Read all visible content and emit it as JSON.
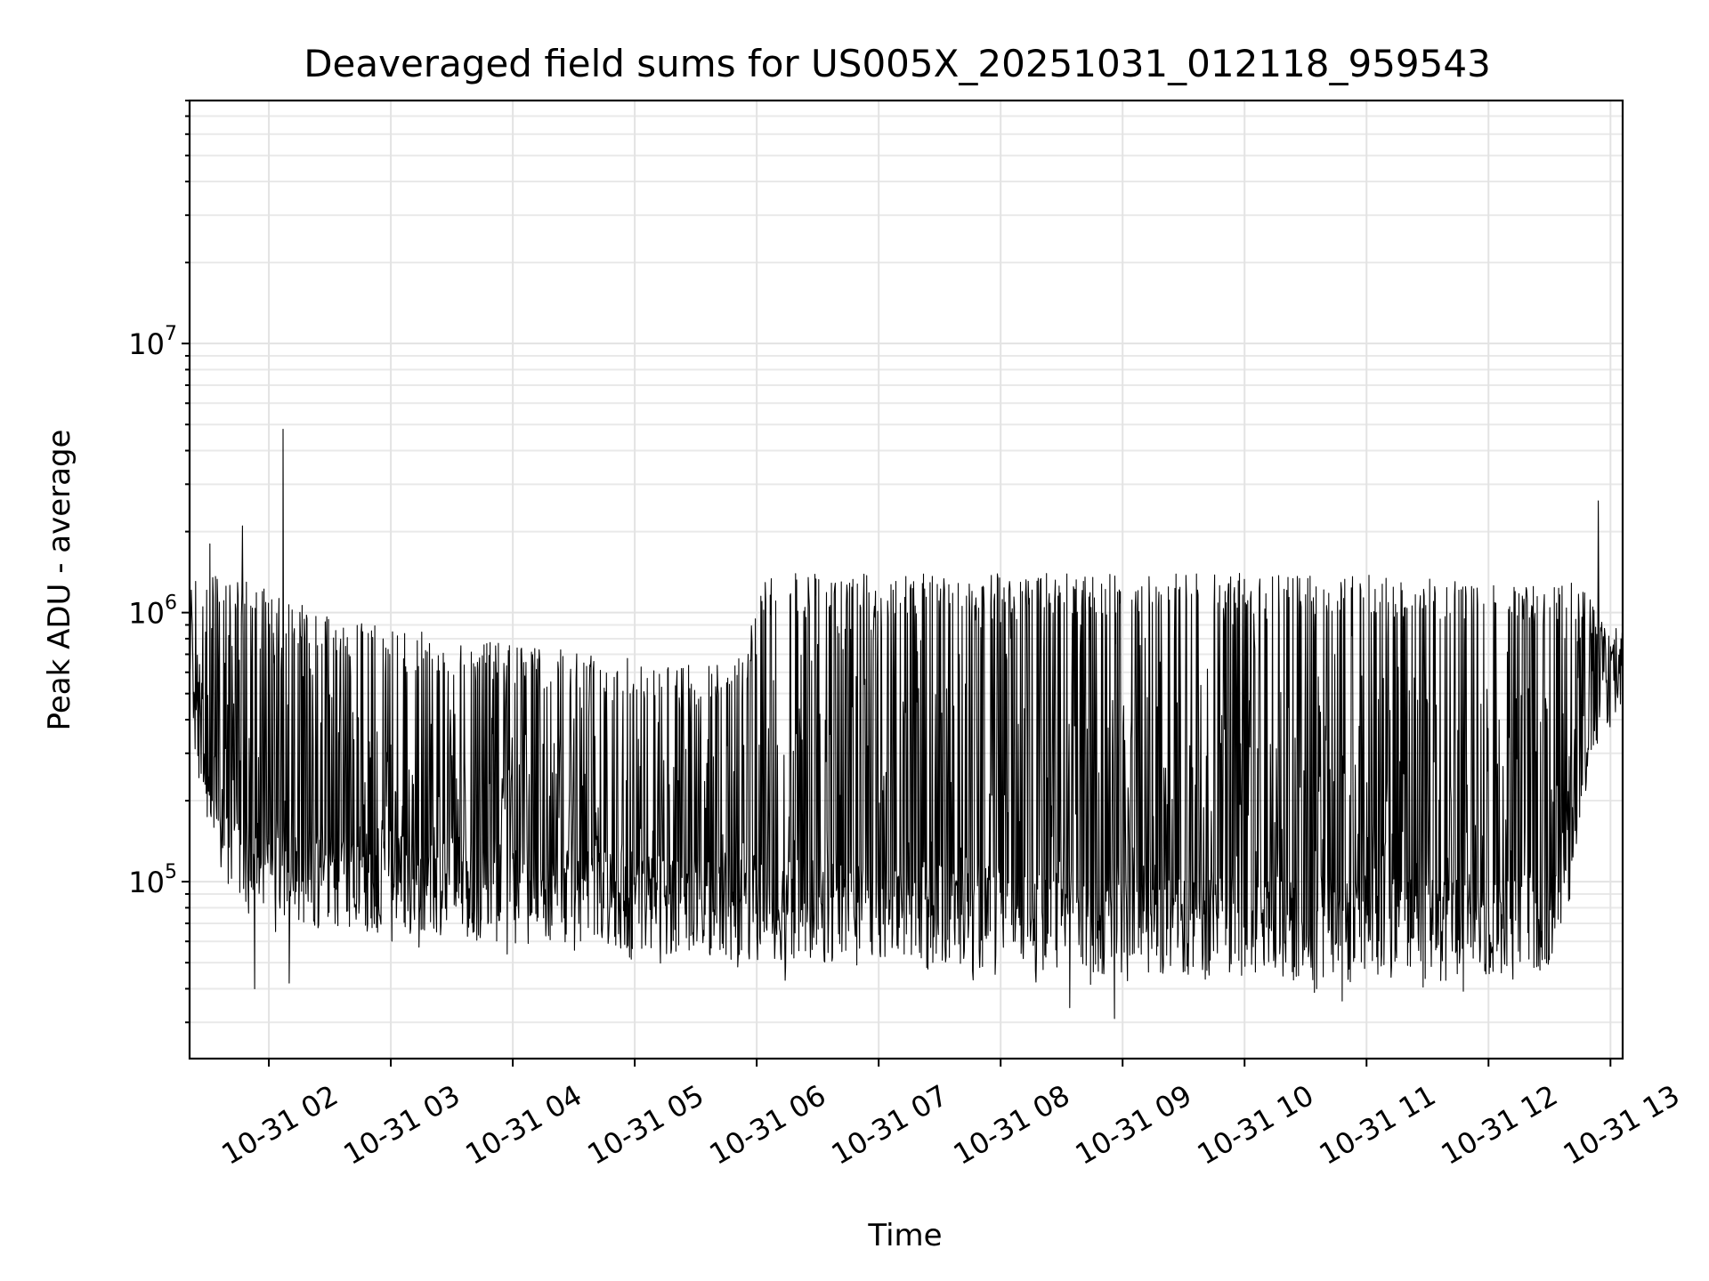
{
  "chart_data": {
    "type": "line",
    "title": "Deaveraged field sums for US005X_20251031_012118_959543",
    "xlabel": "Time",
    "ylabel": "Peak ADU - average",
    "yscale": "log",
    "grid": true,
    "line_color": "#000000",
    "xlim": [
      "2025-10-31 01:21",
      "2025-10-31 13:06"
    ],
    "ylim": [
      22000,
      80000000
    ],
    "x_ticks": [
      {
        "value": "2025-10-31 02:00",
        "label": "10-31 02"
      },
      {
        "value": "2025-10-31 03:00",
        "label": "10-31 03"
      },
      {
        "value": "2025-10-31 04:00",
        "label": "10-31 04"
      },
      {
        "value": "2025-10-31 05:00",
        "label": "10-31 05"
      },
      {
        "value": "2025-10-31 06:00",
        "label": "10-31 06"
      },
      {
        "value": "2025-10-31 07:00",
        "label": "10-31 07"
      },
      {
        "value": "2025-10-31 08:00",
        "label": "10-31 08"
      },
      {
        "value": "2025-10-31 09:00",
        "label": "10-31 09"
      },
      {
        "value": "2025-10-31 10:00",
        "label": "10-31 10"
      },
      {
        "value": "2025-10-31 11:00",
        "label": "10-31 11"
      },
      {
        "value": "2025-10-31 12:00",
        "label": "10-31 12"
      },
      {
        "value": "2025-10-31 13:00",
        "label": "10-31 13"
      }
    ],
    "y_ticks": [
      {
        "value": 100000,
        "base": "10",
        "exp": "5"
      },
      {
        "value": 1000000,
        "base": "10",
        "exp": "6"
      },
      {
        "value": 10000000,
        "base": "10",
        "exp": "7"
      }
    ],
    "series": [
      {
        "x": [
          "2025-10-31 01:21",
          "2025-10-31 01:25",
          "2025-10-31 01:30",
          "2025-10-31 01:35",
          "2025-10-31 01:40",
          "2025-10-31 01:45",
          "2025-10-31 01:50",
          "2025-10-31 01:55",
          "2025-10-31 02:00",
          "2025-10-31 02:05",
          "2025-10-31 02:10",
          "2025-10-31 02:20",
          "2025-10-31 02:30",
          "2025-10-31 02:40",
          "2025-10-31 02:50",
          "2025-10-31 03:00",
          "2025-10-31 03:15",
          "2025-10-31 03:30",
          "2025-10-31 03:45",
          "2025-10-31 04:00",
          "2025-10-31 04:15",
          "2025-10-31 04:30",
          "2025-10-31 04:45",
          "2025-10-31 05:00",
          "2025-10-31 05:15",
          "2025-10-31 05:30",
          "2025-10-31 05:45",
          "2025-10-31 05:55",
          "2025-10-31 06:00",
          "2025-10-31 06:15",
          "2025-10-31 06:30",
          "2025-10-31 06:45",
          "2025-10-31 07:00",
          "2025-10-31 07:15",
          "2025-10-31 07:30",
          "2025-10-31 07:45",
          "2025-10-31 08:00",
          "2025-10-31 08:15",
          "2025-10-31 08:30",
          "2025-10-31 08:45",
          "2025-10-31 09:00",
          "2025-10-31 09:15",
          "2025-10-31 09:30",
          "2025-10-31 09:45",
          "2025-10-31 10:00",
          "2025-10-31 10:15",
          "2025-10-31 10:30",
          "2025-10-31 10:45",
          "2025-10-31 11:00",
          "2025-10-31 11:15",
          "2025-10-31 11:30",
          "2025-10-31 11:45",
          "2025-10-31 12:00",
          "2025-10-31 12:15",
          "2025-10-31 12:30",
          "2025-10-31 12:40",
          "2025-10-31 12:50",
          "2025-10-31 13:00",
          "2025-10-31 13:06"
        ],
        "baseline": [
          900000,
          420000,
          190000,
          160000,
          140000,
          130000,
          125000,
          120000,
          118000,
          116000,
          115000,
          112000,
          110000,
          108000,
          106000,
          105000,
          103000,
          101000,
          99000,
          97000,
          95000,
          93000,
          92000,
          90000,
          88000,
          87000,
          86000,
          85000,
          84000,
          83000,
          82000,
          81000,
          80000,
          80000,
          79000,
          78000,
          77000,
          76000,
          75000,
          74000,
          73000,
          72000,
          72000,
          71000,
          71000,
          71000,
          70000,
          70000,
          70000,
          70000,
          70000,
          71000,
          72000,
          74000,
          78000,
          140000,
          420000,
          680000,
          700000
        ],
        "peak": [
          1500000,
          1500000,
          1400000,
          1400000,
          1350000,
          1300000,
          1300000,
          1250000,
          1200000,
          1150000,
          1100000,
          1050000,
          1000000,
          950000,
          900000,
          900000,
          850000,
          800000,
          780000,
          760000,
          740000,
          720000,
          700000,
          680000,
          660000,
          640000,
          650000,
          700000,
          1300000,
          1400000,
          1400000,
          1400000,
          1400000,
          1400000,
          1400000,
          1400000,
          1400000,
          1400000,
          1400000,
          1400000,
          1400000,
          1400000,
          1400000,
          1400000,
          1400000,
          1400000,
          1400000,
          1400000,
          1400000,
          1350000,
          1350000,
          1300000,
          1300000,
          1300000,
          1300000,
          1300000,
          1200000,
          900000,
          850000
        ],
        "spikes": [
          {
            "x": "2025-10-31 02:07",
            "y": 4800000
          },
          {
            "x": "2025-10-31 01:47",
            "y": 2100000
          },
          {
            "x": "2025-10-31 01:31",
            "y": 1800000
          },
          {
            "x": "2025-10-31 12:54",
            "y": 2600000
          },
          {
            "x": "2025-10-31 02:10",
            "y": 42000
          },
          {
            "x": "2025-10-31 01:53",
            "y": 40000
          },
          {
            "x": "2025-10-31 08:56",
            "y": 31000
          },
          {
            "x": "2025-10-31 08:34",
            "y": 34000
          },
          {
            "x": "2025-10-31 10:48",
            "y": 36000
          },
          {
            "x": "2025-10-31 06:14",
            "y": 43000
          },
          {
            "x": "2025-10-31 11:39",
            "y": 43000
          },
          {
            "x": "2025-10-31 12:41",
            "y": 120000
          }
        ]
      }
    ]
  }
}
